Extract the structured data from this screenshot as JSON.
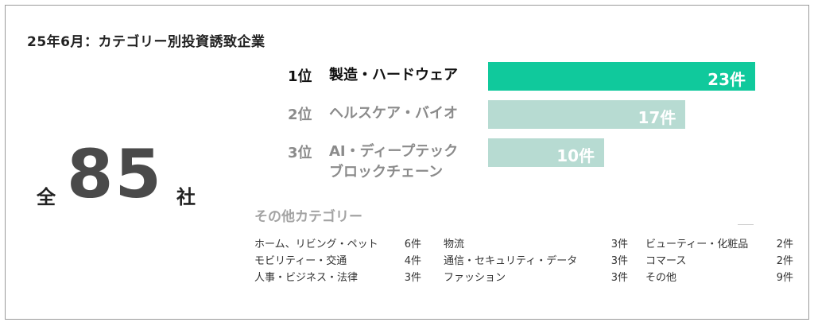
{
  "title": "25年6月：カテゴリー別投資誘致企業",
  "total": {
    "prefix": "全",
    "value": "85",
    "suffix": "社"
  },
  "colors": {
    "top_bar": "#10c99c",
    "other_bar": "#b7dbd2",
    "top_text": "#111111",
    "other_text": "#8b8b8b"
  },
  "chart_data": {
    "type": "bar",
    "categories": [
      "製造・ハードウェア",
      "ヘルスケア・バイオ",
      "AI・ディープテック ブロックチェーン"
    ],
    "values": [
      23,
      17,
      10
    ],
    "ranks": [
      "1位",
      "2位",
      "3位"
    ],
    "rank_labels": [
      [
        "製造・ハードウェア"
      ],
      [
        "ヘルスケア・バイオ"
      ],
      [
        "AI・ディープテック",
        "ブロックチェーン"
      ]
    ],
    "value_labels": [
      "23件",
      "17件",
      "10件"
    ],
    "title": "",
    "xlabel": "",
    "ylabel": "",
    "xlim": [
      0,
      23
    ]
  },
  "other": {
    "title": "その他カテゴリー",
    "columns": [
      [
        {
          "name": "ホーム、リビング・ペット",
          "count": "6件"
        },
        {
          "name": "モビリティー・交通",
          "count": "4件"
        },
        {
          "name": "人事・ビジネス・法律",
          "count": "3件"
        }
      ],
      [
        {
          "name": "物流",
          "count": "3件"
        },
        {
          "name": "通信・セキュリティ・データ",
          "count": "3件"
        },
        {
          "name": "ファッション",
          "count": "3件"
        }
      ],
      [
        {
          "name": "ビューティー・化粧品",
          "count": "2件"
        },
        {
          "name": "コマース",
          "count": "2件"
        },
        {
          "name": "その他",
          "count": "9件"
        }
      ]
    ]
  }
}
